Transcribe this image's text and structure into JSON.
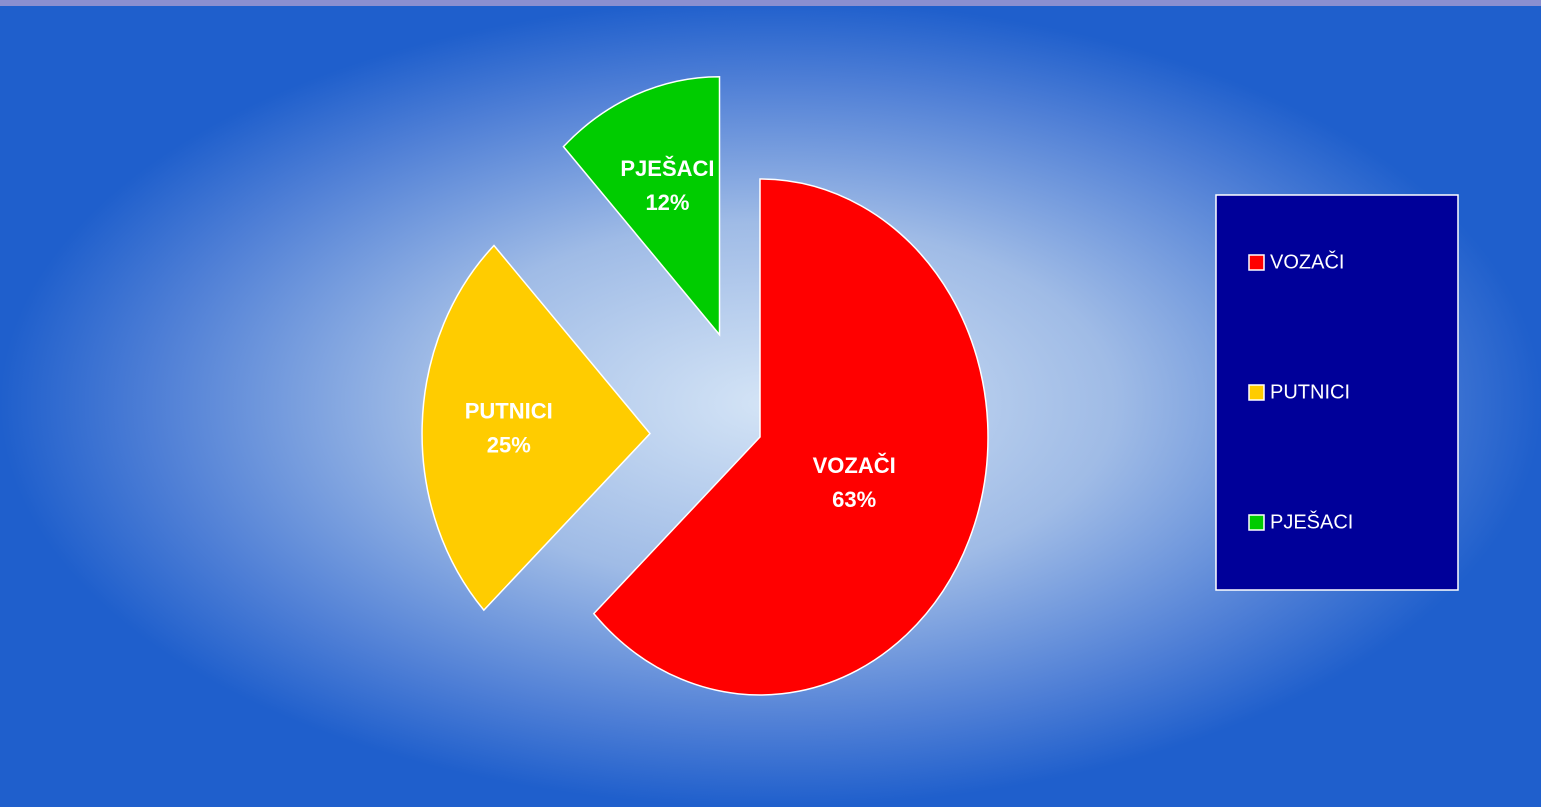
{
  "chart_data": {
    "type": "pie",
    "categories": [
      "VOZAČI",
      "PUTNICI",
      "PJEŠACI"
    ],
    "values": [
      63,
      25,
      12
    ],
    "value_labels": [
      "63%",
      "25%",
      "12%"
    ],
    "colors": [
      "#ff0000",
      "#ffcc00",
      "#00cc00"
    ],
    "legend": "right"
  }
}
